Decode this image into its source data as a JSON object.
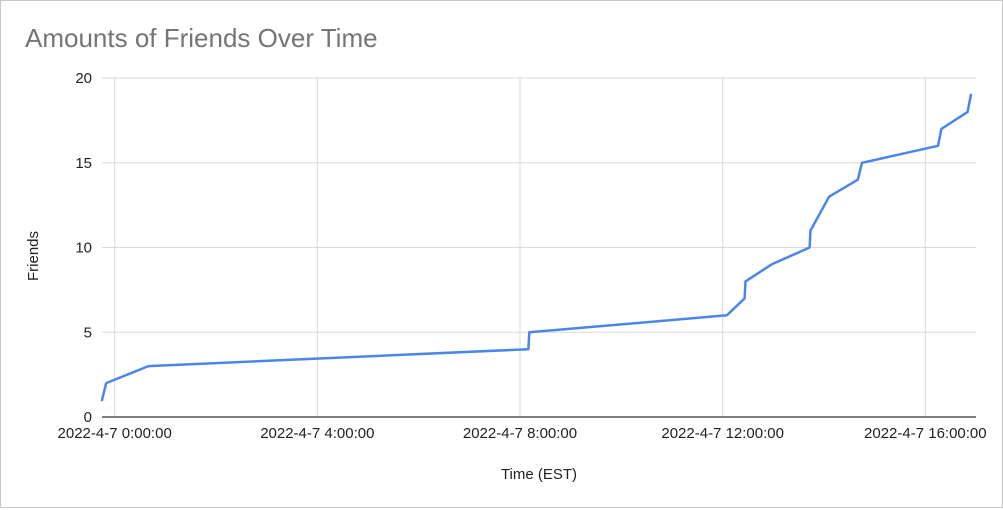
{
  "chart_data": {
    "type": "line",
    "title": "Amounts of Friends Over Time",
    "xlabel": "Time (EST)",
    "ylabel": "Friends",
    "xlim": [
      "2022-04-06T23:45:00",
      "2022-04-07T17:00:00"
    ],
    "ylim": [
      0,
      20
    ],
    "x_ticks": [
      {
        "value": "2022-04-07T00:00:00",
        "label": "2022-4-7 0:00:00"
      },
      {
        "value": "2022-04-07T04:00:00",
        "label": "2022-4-7 4:00:00"
      },
      {
        "value": "2022-04-07T08:00:00",
        "label": "2022-4-7 8:00:00"
      },
      {
        "value": "2022-04-07T12:00:00",
        "label": "2022-4-7 12:00:00"
      },
      {
        "value": "2022-04-07T16:00:00",
        "label": "2022-4-7 16:00:00"
      }
    ],
    "y_ticks": [
      0,
      5,
      10,
      15,
      20
    ],
    "grid": true,
    "line_color": "#4a86e8",
    "series": [
      {
        "x": [
          "2022-04-06T23:45:00",
          "2022-04-06T23:50:00",
          "2022-04-07T00:40:00",
          "2022-04-07T08:10:00",
          "2022-04-07T08:11:00",
          "2022-04-07T12:05:00",
          "2022-04-07T12:26:00",
          "2022-04-07T12:27:00",
          "2022-04-07T12:58:00",
          "2022-04-07T13:43:00",
          "2022-04-07T13:44:00",
          "2022-04-07T14:06:00",
          "2022-04-07T14:40:00",
          "2022-04-07T14:45:00",
          "2022-04-07T16:15:00",
          "2022-04-07T16:19:00",
          "2022-04-07T16:50:00",
          "2022-04-07T16:54:00"
        ],
        "values": [
          1,
          2,
          3,
          4,
          5,
          6,
          7,
          8,
          9,
          10,
          11,
          13,
          14,
          15,
          16,
          17,
          18,
          19
        ]
      }
    ]
  }
}
